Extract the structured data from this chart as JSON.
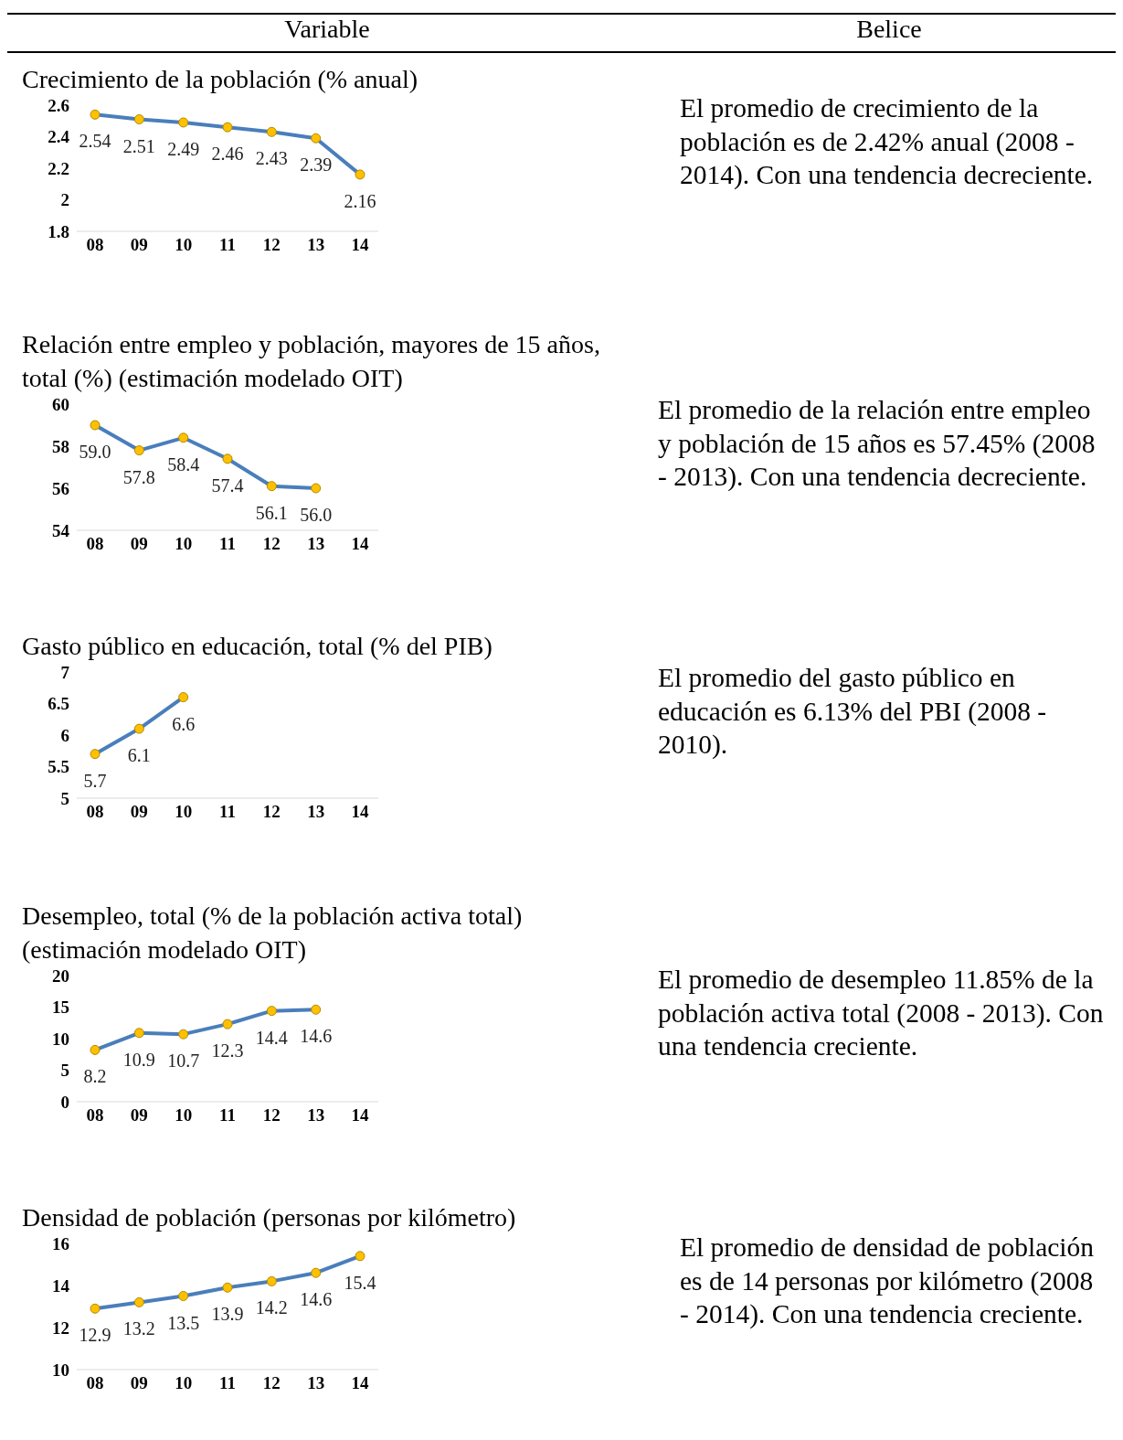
{
  "chart_data": [
    {
      "type": "other",
      "annotations": [
        "Variable",
        "Belice"
      ]
    },
    {
      "type": "line",
      "title": "Crecimiento de la población (% anual)",
      "categories": [
        "08",
        "09",
        "10",
        "11",
        "12",
        "13",
        "14"
      ],
      "series": [
        {
          "color": "#4a7ebb",
          "values": [
            2.54,
            2.51,
            2.49,
            2.46,
            2.43,
            2.39,
            2.16
          ]
        }
      ],
      "ylim": [
        1.8,
        2.6
      ],
      "yticks": [
        1.8,
        2,
        2.2,
        2.4,
        2.6
      ],
      "data_labels": true,
      "marker": "circle",
      "grid": false
    },
    {
      "type": "other",
      "annotations": [
        "El promedio de crecimiento de la población es de 2.42% anual (2008 - 2014). Con una tendencia decreciente."
      ]
    },
    {
      "type": "line",
      "title": "Relación entre empleo y población, mayores de 15 años, total (%) (estimación modelado OIT)",
      "categories": [
        "08",
        "09",
        "10",
        "11",
        "12",
        "13",
        "14"
      ],
      "series": [
        {
          "color": "#4a7ebb",
          "values": [
            59.0,
            57.8,
            58.4,
            57.4,
            56.1,
            56.0,
            null
          ],
          "value_labels": [
            "59.0",
            "57.8",
            "58.4",
            "57.4",
            "56.1",
            "56.0",
            null
          ]
        }
      ],
      "ylim": [
        54,
        60
      ],
      "yticks": [
        54,
        56,
        58,
        60
      ],
      "marker": "circle",
      "grid": false
    },
    {
      "type": "other",
      "annotations": [
        "El promedio de la relación entre empleo y población de 15 años es 57.45% (2008 - 2013). Con una tendencia decreciente."
      ]
    },
    {
      "type": "line",
      "title": "Gasto público en educación, total (% del PIB)",
      "categories": [
        "08",
        "09",
        "10",
        "11",
        "12",
        "13",
        "14"
      ],
      "series": [
        {
          "color": "#4a7ebb",
          "values": [
            5.7,
            6.1,
            6.6,
            null,
            null,
            null,
            null
          ]
        }
      ],
      "ylim": [
        5,
        7
      ],
      "yticks": [
        5,
        5.5,
        6,
        6.5,
        7
      ],
      "data_labels": true,
      "marker": "circle",
      "grid": false
    },
    {
      "type": "other",
      "annotations": [
        "El promedio del gasto público en educación es 6.13% del PBI (2008 - 2010)."
      ]
    },
    {
      "type": "line",
      "title": "Desempleo, total (% de la población activa total) (estimación modelado OIT)",
      "categories": [
        "08",
        "09",
        "10",
        "11",
        "12",
        "13",
        "14"
      ],
      "series": [
        {
          "color": "#4a7ebb",
          "values": [
            8.2,
            10.9,
            10.7,
            12.3,
            14.4,
            14.6,
            null
          ]
        }
      ],
      "ylim": [
        0,
        20
      ],
      "yticks": [
        0,
        5,
        10,
        15,
        20
      ],
      "data_labels": true,
      "marker": "circle",
      "grid": false
    },
    {
      "type": "other",
      "annotations": [
        "El promedio de desempleo 11.85% de la población activa total (2008 - 2013). Con una tendencia creciente."
      ]
    },
    {
      "type": "line",
      "title": "Densidad de población (personas por kilómetro)",
      "categories": [
        "08",
        "09",
        "10",
        "11",
        "12",
        "13",
        "14"
      ],
      "series": [
        {
          "color": "#4a7ebb",
          "values": [
            12.9,
            13.2,
            13.5,
            13.9,
            14.2,
            14.6,
            15.4
          ]
        }
      ],
      "ylim": [
        10,
        16
      ],
      "yticks": [
        10,
        12,
        14,
        16
      ],
      "data_labels": true,
      "marker": "circle",
      "grid": false
    },
    {
      "type": "other",
      "annotations": [
        "El promedio de densidad de población es de 14 personas por kilómetro   (2008 - 2014). Con una tendencia creciente."
      ]
    }
  ]
}
